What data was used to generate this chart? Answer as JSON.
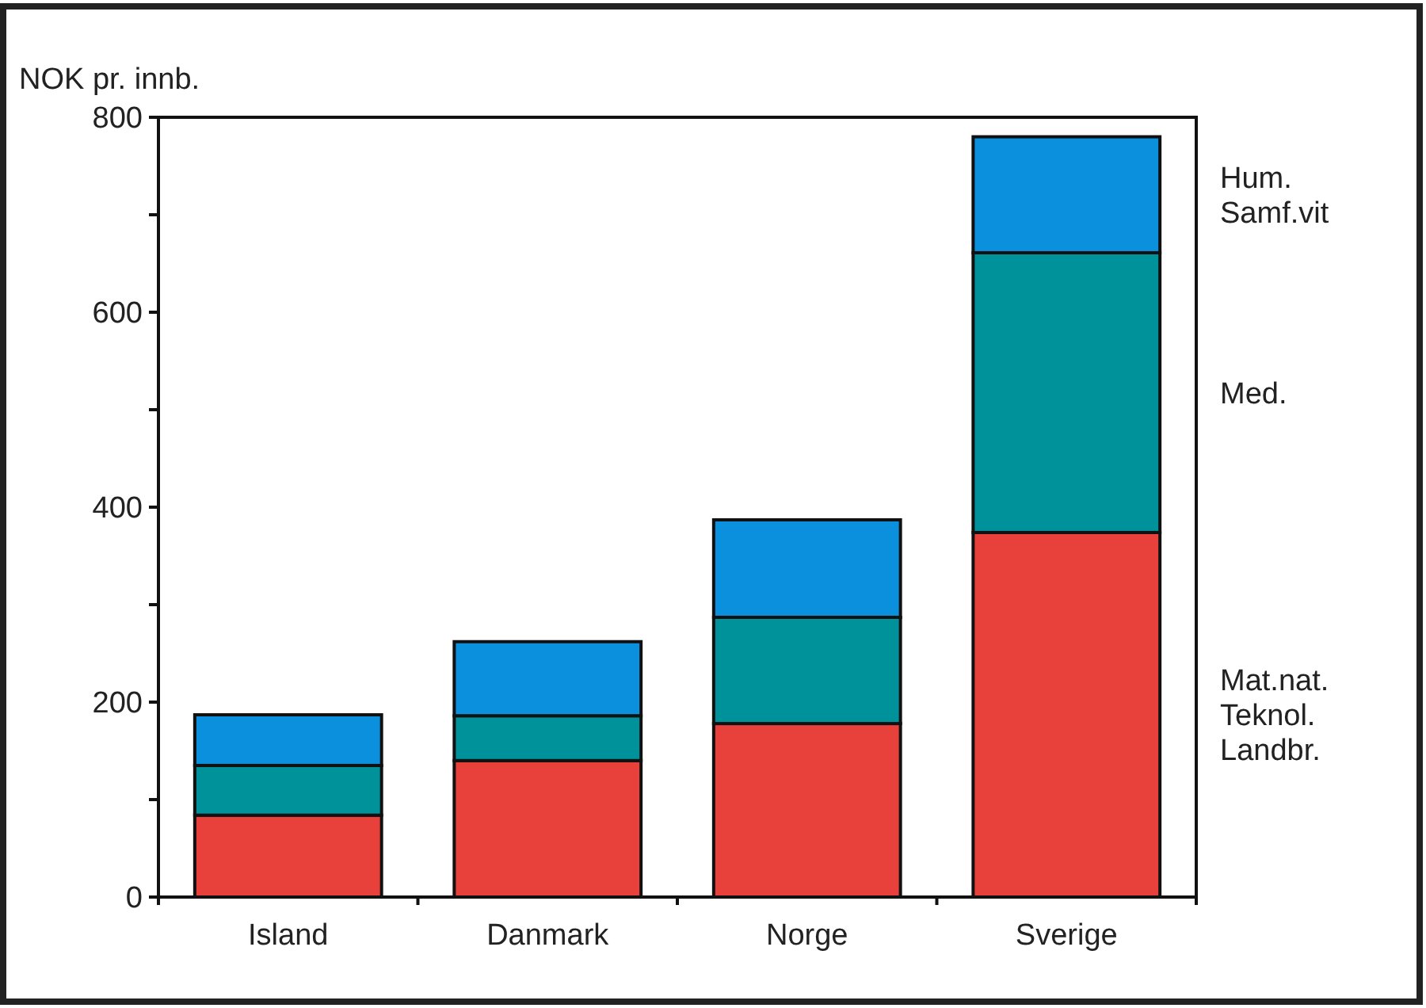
{
  "chart_data": {
    "type": "bar",
    "stacked": true,
    "ylabel": "NOK pr. innb.",
    "categories": [
      "Island",
      "Danmark",
      "Norge",
      "Sverige"
    ],
    "series": [
      {
        "name": "Mat.nat.\nTeknol.\nLandbr.",
        "color": "#e8403a",
        "values": [
          84,
          140,
          178,
          374
        ]
      },
      {
        "name": "Med.",
        "color": "#00929a",
        "values": [
          51,
          46,
          109,
          287
        ]
      },
      {
        "name": "Hum.\nSamf.vit",
        "color": "#0a90dc",
        "values": [
          52,
          76,
          100,
          119
        ]
      }
    ],
    "ylim": [
      0,
      800
    ],
    "yticks": [
      0,
      {
        "value": 100,
        "label": null
      },
      200,
      {
        "value": 300,
        "label": null
      },
      400,
      {
        "value": 500,
        "label": null
      },
      600,
      {
        "value": 700,
        "label": null
      },
      800
    ],
    "grid": false,
    "legend": "right"
  }
}
